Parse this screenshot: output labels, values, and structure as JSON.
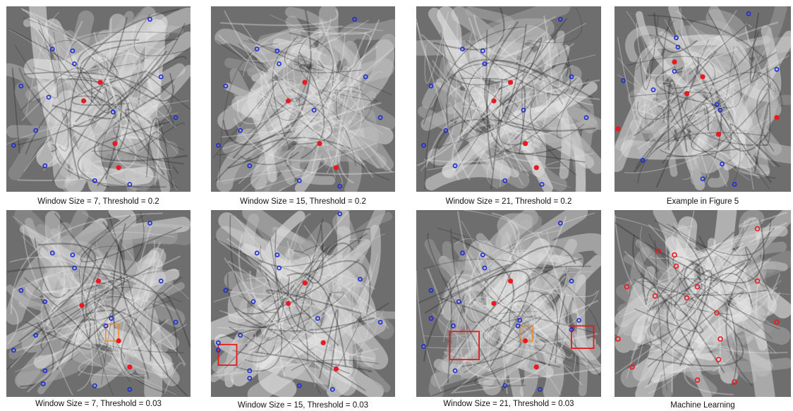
{
  "figure": {
    "panels": [
      {
        "caption": "Window Size = 7, Threshold = 0.2",
        "red_dots": [
          [
            0.51,
            0.41
          ],
          [
            0.42,
            0.51
          ],
          [
            0.59,
            0.74
          ],
          [
            0.61,
            0.87
          ]
        ],
        "blue_rings": [
          [
            0.78,
            0.07
          ],
          [
            0.25,
            0.23
          ],
          [
            0.36,
            0.24
          ],
          [
            0.37,
            0.31
          ],
          [
            0.84,
            0.38
          ],
          [
            0.08,
            0.43
          ],
          [
            0.23,
            0.49
          ],
          [
            0.58,
            0.57
          ],
          [
            0.92,
            0.6
          ],
          [
            0.16,
            0.67
          ],
          [
            0.04,
            0.75
          ],
          [
            0.21,
            0.86
          ],
          [
            0.48,
            0.94
          ],
          [
            0.67,
            0.96
          ]
        ],
        "red_rings": [],
        "orange_boxes": [],
        "red_boxes": []
      },
      {
        "caption": "Window Size = 15, Threshold = 0.2",
        "red_dots": [
          [
            0.51,
            0.41
          ],
          [
            0.42,
            0.51
          ],
          [
            0.59,
            0.74
          ],
          [
            0.68,
            0.87
          ]
        ],
        "blue_rings": [
          [
            0.78,
            0.07
          ],
          [
            0.25,
            0.23
          ],
          [
            0.36,
            0.24
          ],
          [
            0.37,
            0.31
          ],
          [
            0.84,
            0.38
          ],
          [
            0.08,
            0.43
          ],
          [
            0.56,
            0.56
          ],
          [
            0.92,
            0.6
          ],
          [
            0.16,
            0.67
          ],
          [
            0.04,
            0.75
          ],
          [
            0.21,
            0.86
          ],
          [
            0.48,
            0.94
          ],
          [
            0.7,
            0.97
          ]
        ],
        "red_rings": [],
        "orange_boxes": [],
        "red_boxes": []
      },
      {
        "caption": "Window Size = 21, Threshold = 0.2",
        "red_dots": [
          [
            0.51,
            0.41
          ],
          [
            0.42,
            0.51
          ],
          [
            0.59,
            0.74
          ],
          [
            0.65,
            0.87
          ]
        ],
        "blue_rings": [
          [
            0.78,
            0.07
          ],
          [
            0.25,
            0.23
          ],
          [
            0.36,
            0.24
          ],
          [
            0.37,
            0.31
          ],
          [
            0.84,
            0.38
          ],
          [
            0.08,
            0.43
          ],
          [
            0.58,
            0.56
          ],
          [
            0.92,
            0.6
          ],
          [
            0.16,
            0.67
          ],
          [
            0.04,
            0.75
          ],
          [
            0.21,
            0.86
          ],
          [
            0.48,
            0.94
          ],
          [
            0.68,
            0.96
          ]
        ],
        "red_rings": [],
        "orange_boxes": [],
        "red_boxes": []
      },
      {
        "caption": "Example in Figure 5",
        "red_dots": [
          [
            0.34,
            0.3
          ],
          [
            0.5,
            0.38
          ],
          [
            0.41,
            0.47
          ],
          [
            0.02,
            0.66
          ],
          [
            0.59,
            0.69
          ],
          [
            0.92,
            0.6
          ]
        ],
        "blue_rings": [
          [
            0.76,
            0.04
          ],
          [
            0.35,
            0.17
          ],
          [
            0.36,
            0.22
          ],
          [
            0.34,
            0.35
          ],
          [
            0.92,
            0.34
          ],
          [
            0.05,
            0.4
          ],
          [
            0.22,
            0.45
          ],
          [
            0.58,
            0.53
          ],
          [
            0.6,
            0.56
          ],
          [
            0.16,
            0.83
          ],
          [
            0.5,
            0.93
          ],
          [
            0.61,
            0.85
          ],
          [
            0.68,
            0.96
          ]
        ],
        "red_rings": [],
        "orange_boxes": [],
        "red_boxes": []
      },
      {
        "caption": "Window Size = 7, Threshold = 0.03",
        "red_dots": [
          [
            0.5,
            0.38
          ],
          [
            0.41,
            0.51
          ],
          [
            0.61,
            0.7
          ],
          [
            0.67,
            0.84
          ]
        ],
        "blue_rings": [
          [
            0.78,
            0.07
          ],
          [
            0.25,
            0.23
          ],
          [
            0.36,
            0.24
          ],
          [
            0.37,
            0.31
          ],
          [
            0.84,
            0.38
          ],
          [
            0.08,
            0.43
          ],
          [
            0.21,
            0.49
          ],
          [
            0.57,
            0.58
          ],
          [
            0.54,
            0.62
          ],
          [
            0.92,
            0.6
          ],
          [
            0.16,
            0.67
          ],
          [
            0.04,
            0.75
          ],
          [
            0.21,
            0.86
          ],
          [
            0.2,
            0.93
          ],
          [
            0.48,
            0.94
          ],
          [
            0.67,
            0.96
          ]
        ],
        "red_rings": [],
        "orange_boxes": [
          [
            0.54,
            0.61,
            0.07,
            0.09
          ]
        ],
        "red_boxes": []
      },
      {
        "caption": "Window Size = 15, Threshold = 0.03",
        "red_dots": [
          [
            0.51,
            0.39
          ],
          [
            0.42,
            0.5
          ],
          [
            0.61,
            0.71
          ],
          [
            0.68,
            0.85
          ]
        ],
        "blue_rings": [
          [
            0.7,
            0.02
          ],
          [
            0.25,
            0.23
          ],
          [
            0.36,
            0.24
          ],
          [
            0.37,
            0.31
          ],
          [
            0.81,
            0.37
          ],
          [
            0.08,
            0.43
          ],
          [
            0.23,
            0.49
          ],
          [
            0.58,
            0.58
          ],
          [
            0.92,
            0.6
          ],
          [
            0.16,
            0.67
          ],
          [
            0.04,
            0.71
          ],
          [
            0.04,
            0.75
          ],
          [
            0.21,
            0.86
          ],
          [
            0.21,
            0.9
          ],
          [
            0.48,
            0.94
          ],
          [
            0.66,
            0.96
          ]
        ],
        "red_rings": [],
        "orange_boxes": [],
        "red_boxes": [
          [
            0.04,
            0.72,
            0.1,
            0.11
          ]
        ]
      },
      {
        "caption": "Window Size = 21, Threshold = 0.03",
        "red_dots": [
          [
            0.51,
            0.38
          ],
          [
            0.42,
            0.5
          ],
          [
            0.59,
            0.7
          ],
          [
            0.65,
            0.84
          ]
        ],
        "blue_rings": [
          [
            0.78,
            0.07
          ],
          [
            0.25,
            0.23
          ],
          [
            0.36,
            0.24
          ],
          [
            0.37,
            0.31
          ],
          [
            0.84,
            0.38
          ],
          [
            0.08,
            0.43
          ],
          [
            0.23,
            0.49
          ],
          [
            0.56,
            0.59
          ],
          [
            0.55,
            0.62
          ],
          [
            0.08,
            0.58
          ],
          [
            0.2,
            0.62
          ],
          [
            0.04,
            0.73
          ],
          [
            0.84,
            0.64
          ],
          [
            0.88,
            0.59
          ],
          [
            0.21,
            0.86
          ],
          [
            0.48,
            0.94
          ],
          [
            0.67,
            0.96
          ]
        ],
        "red_rings": [],
        "orange_boxes": [
          [
            0.56,
            0.62,
            0.07,
            0.08
          ]
        ],
        "red_boxes": [
          [
            0.18,
            0.65,
            0.16,
            0.15
          ],
          [
            0.84,
            0.62,
            0.12,
            0.12
          ]
        ]
      },
      {
        "caption": "Machine Learning",
        "red_dots": [],
        "blue_rings": [],
        "red_rings": [
          [
            0.81,
            0.1
          ],
          [
            0.25,
            0.22
          ],
          [
            0.34,
            0.24
          ],
          [
            0.35,
            0.3
          ],
          [
            0.81,
            0.38
          ],
          [
            0.07,
            0.41
          ],
          [
            0.47,
            0.41
          ],
          [
            0.23,
            0.46
          ],
          [
            0.41,
            0.47
          ],
          [
            0.58,
            0.55
          ],
          [
            0.92,
            0.6
          ],
          [
            0.02,
            0.69
          ],
          [
            0.6,
            0.69
          ],
          [
            0.59,
            0.8
          ],
          [
            0.1,
            0.84
          ],
          [
            0.47,
            0.91
          ],
          [
            0.68,
            0.92
          ]
        ],
        "orange_boxes": [],
        "red_boxes": []
      }
    ],
    "colors": {
      "red_marker": "#e8191f",
      "blue_marker": "#1c2bd8",
      "orange_box": "#e8892e",
      "red_box": "#e51a1a"
    }
  }
}
